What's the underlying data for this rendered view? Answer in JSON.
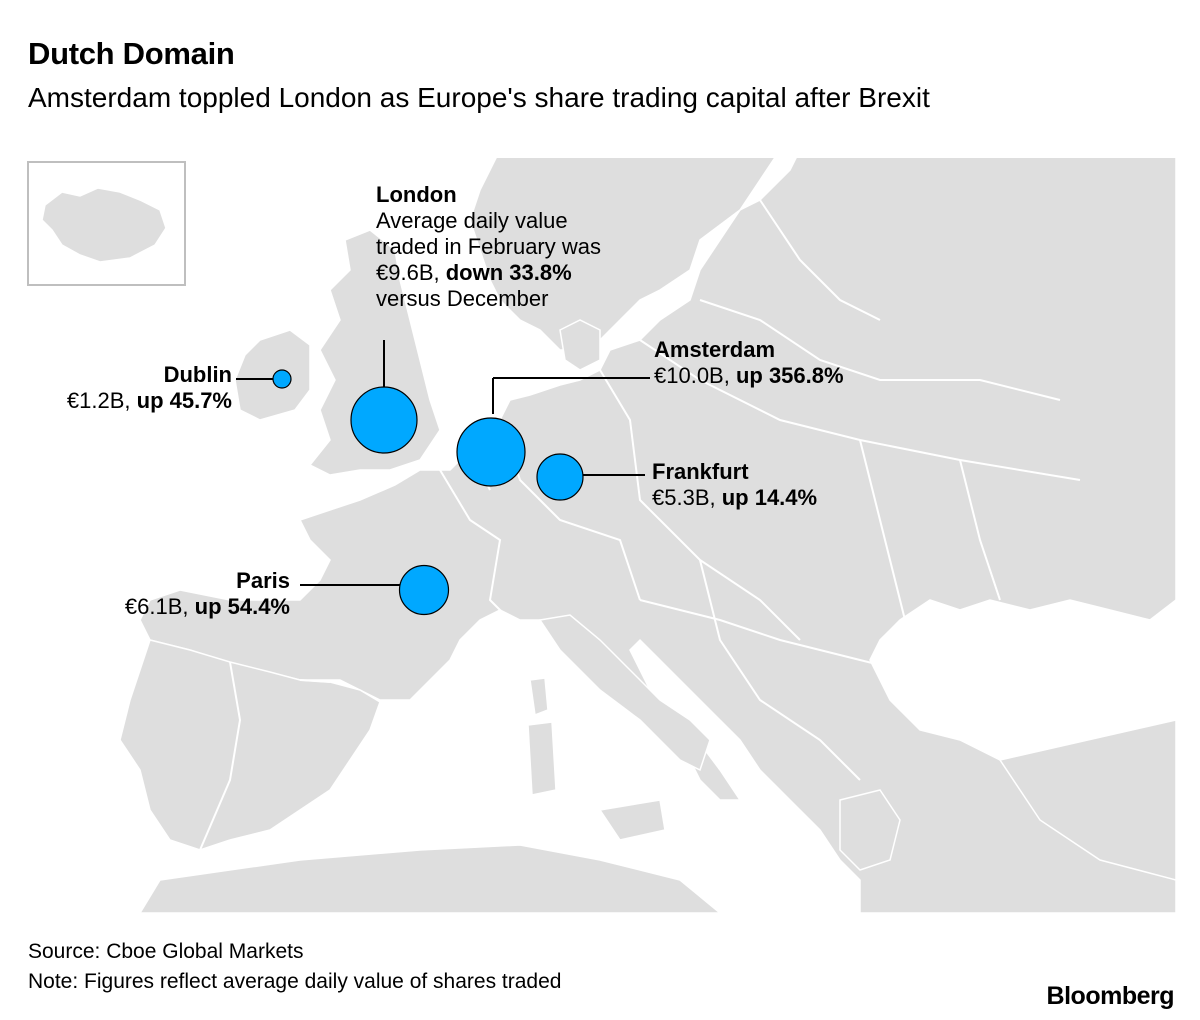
{
  "title": "Dutch Domain",
  "subtitle": "Amsterdam toppled London as Europe's share trading capital after Brexit",
  "map": {
    "land_color": "#dedede",
    "border_color": "#ffffff",
    "bubble_color": "#00a8ff",
    "leader_color": "#000000",
    "inset": "Iceland"
  },
  "markers": [
    {
      "id": "london",
      "city": "London",
      "value_eur_billion": 9.6,
      "change_pct": -33.8,
      "lines": [
        "Average daily value",
        "traded in February was"
      ],
      "value_text": "€9.6B, ",
      "change_text": "down 33.8%",
      "tail": "versus December"
    },
    {
      "id": "amsterdam",
      "city": "Amsterdam",
      "value_eur_billion": 10.0,
      "change_pct": 356.8,
      "value_text": "€10.0B, ",
      "change_text": "up 356.8%"
    },
    {
      "id": "frankfurt",
      "city": "Frankfurt",
      "value_eur_billion": 5.3,
      "change_pct": 14.4,
      "value_text": "€5.3B, ",
      "change_text": "up 14.4%"
    },
    {
      "id": "paris",
      "city": "Paris",
      "value_eur_billion": 6.1,
      "change_pct": 54.4,
      "value_text": "€6.1B, ",
      "change_text": "up 54.4%"
    },
    {
      "id": "dublin",
      "city": "Dublin",
      "value_eur_billion": 1.2,
      "change_pct": 45.7,
      "value_text": "€1.2B, ",
      "change_text": "up 45.7%"
    }
  ],
  "source": "Source: Cboe Global Markets",
  "note": "Note: Figures reflect average daily value of shares traded",
  "brand": "Bloomberg"
}
